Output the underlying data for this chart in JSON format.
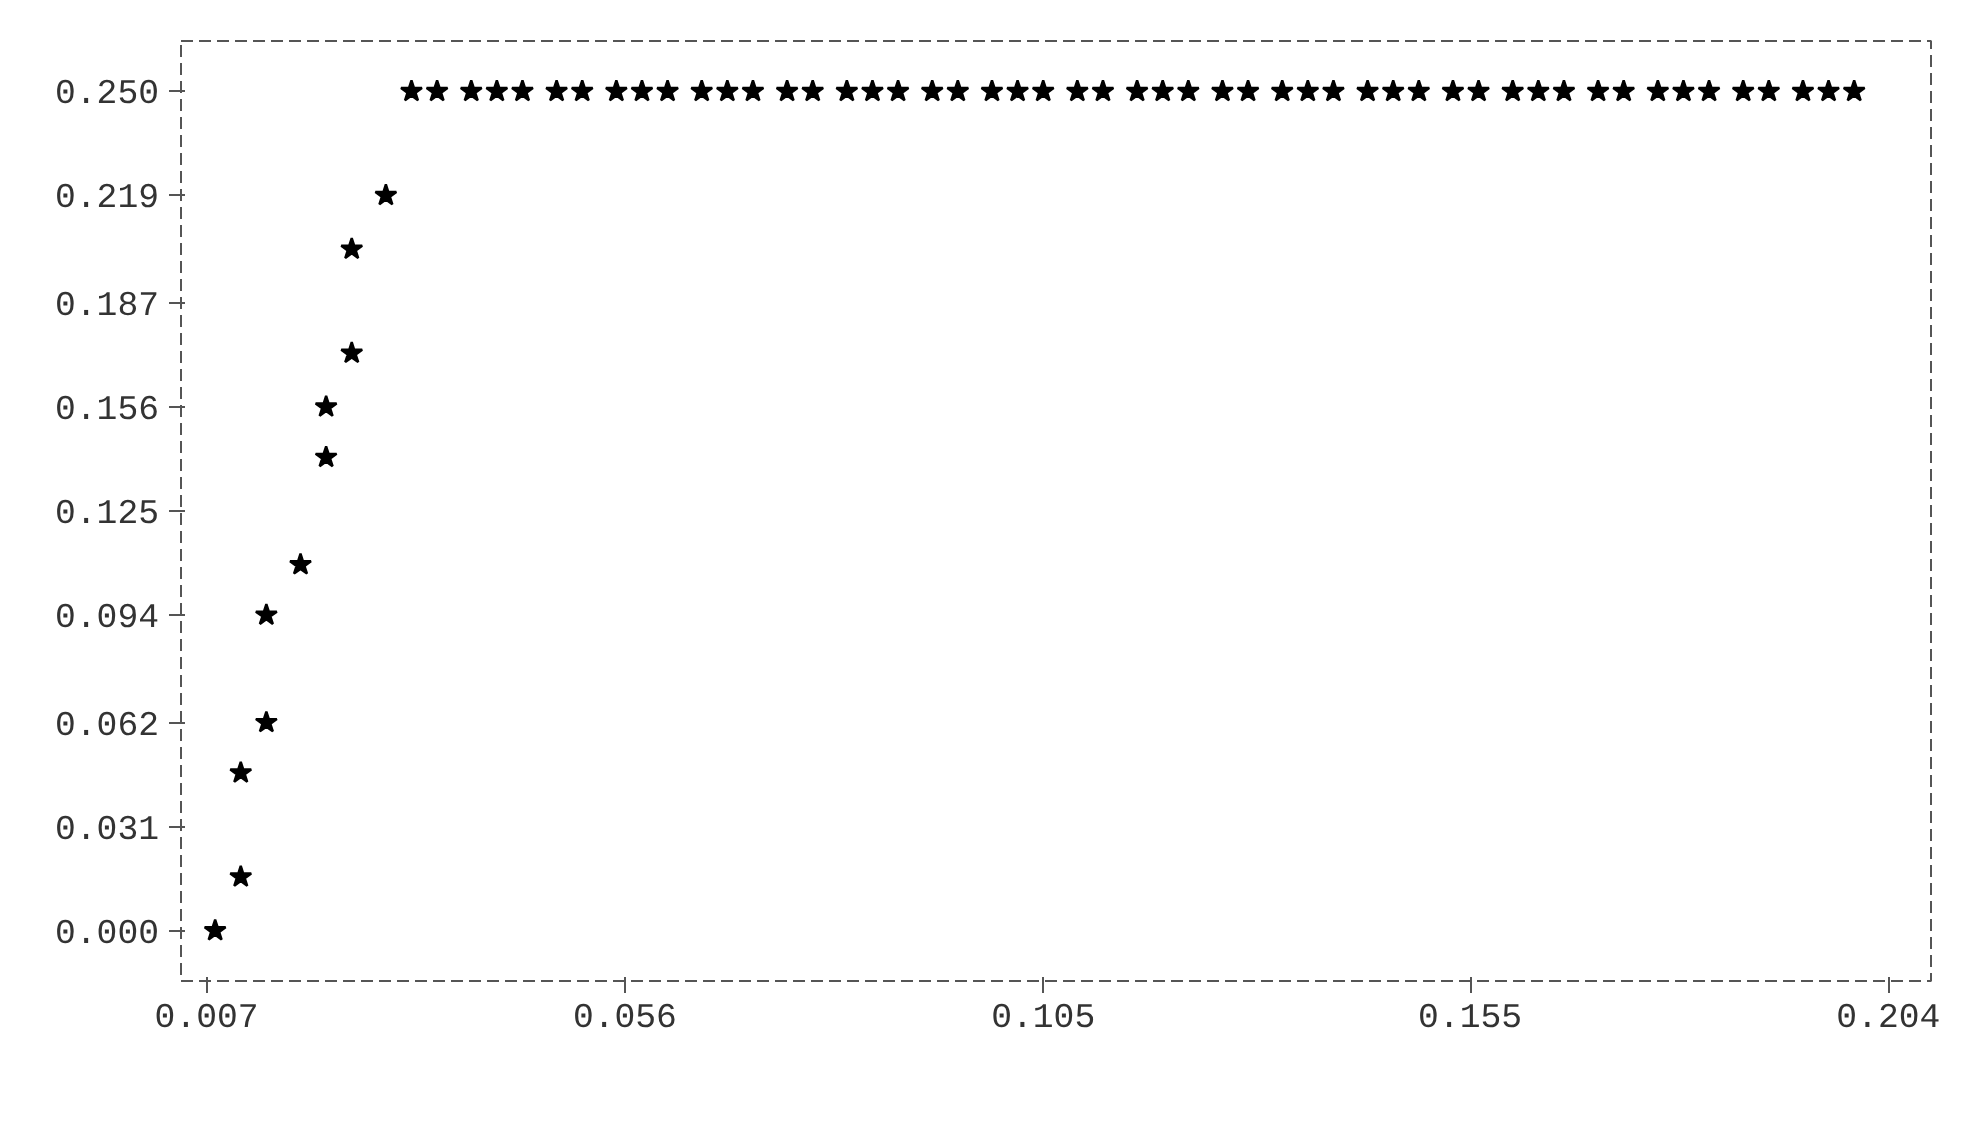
{
  "chart_data": {
    "type": "scatter",
    "marker": "star",
    "grid": false,
    "xlim": [
      0.004,
      0.209
    ],
    "ylim": [
      -0.015,
      0.265
    ],
    "xticks": [
      0.007,
      0.056,
      0.105,
      0.155,
      0.204
    ],
    "yticks": [
      {
        "value": 0.0,
        "label": "0.000"
      },
      0.031,
      0.062,
      0.094,
      0.125,
      0.156,
      0.187,
      0.219,
      {
        "value": 0.25,
        "label": "0.250"
      }
    ],
    "series": [
      {
        "color": "#000000",
        "x": [
          0.008,
          0.011,
          0.011,
          0.014,
          0.014,
          0.018,
          0.021,
          0.021,
          0.024,
          0.024,
          0.028,
          0.031,
          0.034,
          0.038,
          0.041,
          0.044,
          0.048,
          0.051,
          0.055,
          0.058,
          0.061,
          0.065,
          0.068,
          0.071,
          0.075,
          0.078,
          0.082,
          0.085,
          0.088,
          0.092,
          0.095,
          0.099,
          0.102,
          0.105,
          0.109,
          0.112,
          0.116,
          0.119,
          0.122,
          0.126,
          0.129,
          0.133,
          0.136,
          0.139,
          0.143,
          0.146,
          0.149,
          0.153,
          0.156,
          0.16,
          0.163,
          0.166,
          0.17,
          0.173,
          0.177,
          0.18,
          0.183,
          0.187,
          0.19,
          0.194,
          0.197,
          0.2
        ],
        "values": [
          0.0,
          0.016,
          0.047,
          0.062,
          0.094,
          0.109,
          0.141,
          0.156,
          0.172,
          0.203,
          0.219,
          0.25,
          0.25,
          0.25,
          0.25,
          0.25,
          0.25,
          0.25,
          0.25,
          0.25,
          0.25,
          0.25,
          0.25,
          0.25,
          0.25,
          0.25,
          0.25,
          0.25,
          0.25,
          0.25,
          0.25,
          0.25,
          0.25,
          0.25,
          0.25,
          0.25,
          0.25,
          0.25,
          0.25,
          0.25,
          0.25,
          0.25,
          0.25,
          0.25,
          0.25,
          0.25,
          0.25,
          0.25,
          0.25,
          0.25,
          0.25,
          0.25,
          0.25,
          0.25,
          0.25,
          0.25,
          0.25,
          0.25,
          0.25,
          0.25,
          0.25,
          0.25
        ]
      }
    ]
  }
}
